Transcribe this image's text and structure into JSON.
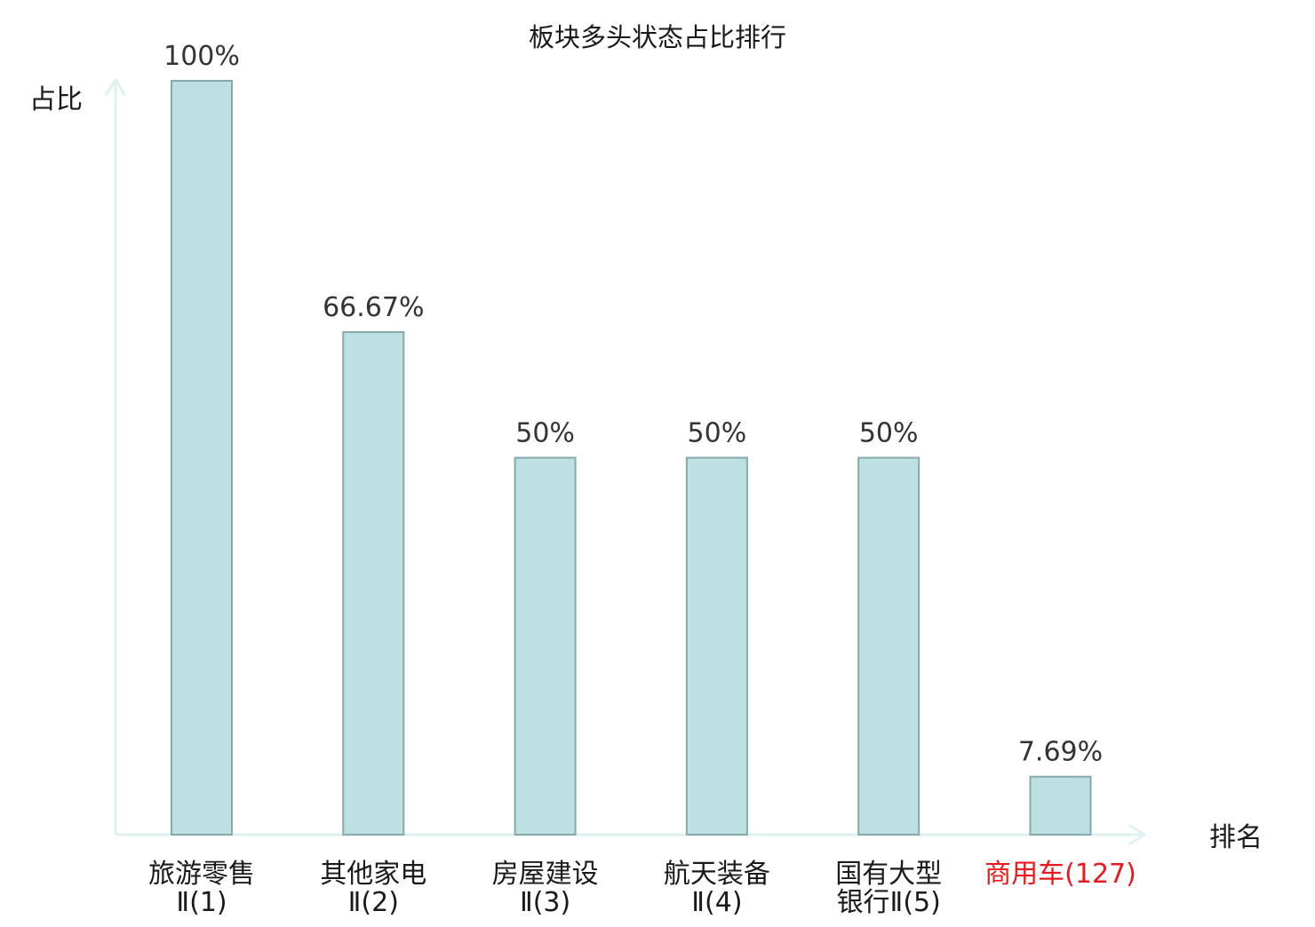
{
  "chart_data": {
    "type": "bar",
    "title": "板块多头状态占比排行",
    "xlabel": "排名",
    "ylabel": "占比",
    "ylim": [
      0,
      100
    ],
    "value_unit": "%",
    "grid": false,
    "legend": "none",
    "colors": {
      "bar_fill": "#bde0e3",
      "bar_stroke": "#86a9ad",
      "axis": "#dff1ee",
      "text": "#1a1a1a",
      "value_text": "#333333",
      "highlight": "#e8191c"
    },
    "categories": [
      {
        "lines": [
          "旅游零售",
          "Ⅱ(1)"
        ],
        "rank": 1,
        "highlight": false
      },
      {
        "lines": [
          "其他家电",
          "Ⅱ(2)"
        ],
        "rank": 2,
        "highlight": false
      },
      {
        "lines": [
          "房屋建设",
          "Ⅱ(3)"
        ],
        "rank": 3,
        "highlight": false
      },
      {
        "lines": [
          "航天装备",
          "Ⅱ(4)"
        ],
        "rank": 4,
        "highlight": false
      },
      {
        "lines": [
          "国有大型",
          "银行Ⅱ(5)"
        ],
        "rank": 5,
        "highlight": false
      },
      {
        "lines": [
          "商用车(127)"
        ],
        "rank": 127,
        "highlight": true
      }
    ],
    "values": [
      100,
      66.67,
      50,
      50,
      50,
      7.69
    ],
    "value_labels": [
      "100%",
      "66.67%",
      "50%",
      "50%",
      "50%",
      "7.69%"
    ]
  }
}
